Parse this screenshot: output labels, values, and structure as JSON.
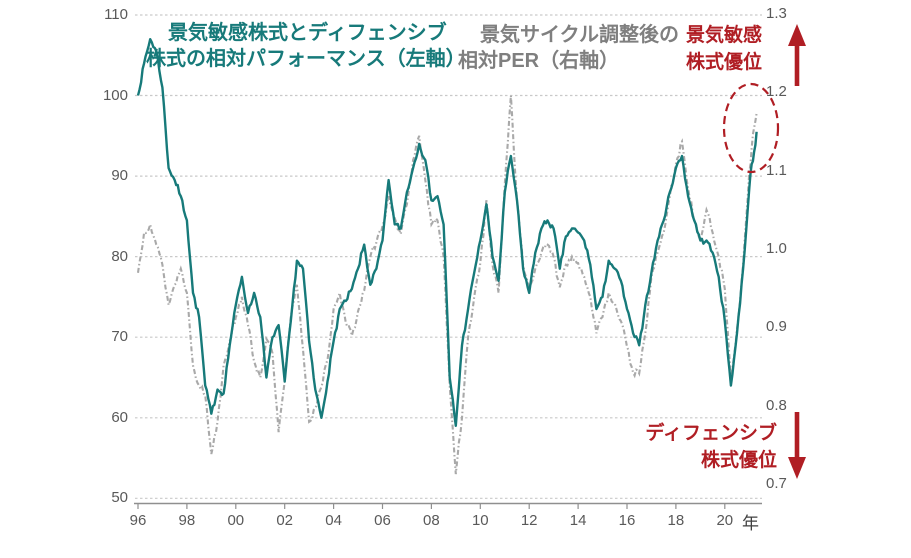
{
  "labels": {
    "series_left_title_line1": "景気敏感株式とディフェンシブ",
    "series_left_title_line2": "株式の相対パフォーマンス（左軸）",
    "series_right_title_line1": "景気サイクル調整後の",
    "series_right_title_line2": "相対PER（右軸）",
    "annotation_top_line1": "景気敏感",
    "annotation_top_line2": "株式優位",
    "annotation_bottom_line1": "ディフェンシブ",
    "annotation_bottom_line2": "株式優位",
    "x_axis_unit": "年"
  },
  "colors": {
    "series_left": "#177a7a",
    "series_right": "#a9a9a9",
    "annotation_red": "#b01e24",
    "grid": "#c9c9c9",
    "axis_line": "#8f8f8f",
    "axis_text": "#595959"
  },
  "chart_data": {
    "type": "line",
    "x_label": "年",
    "x_ticks": [
      "96",
      "98",
      "00",
      "02",
      "04",
      "06",
      "08",
      "10",
      "12",
      "14",
      "16",
      "18",
      "20"
    ],
    "left_axis": {
      "ticks": [
        110,
        100,
        90,
        80,
        70,
        60,
        50
      ],
      "range": [
        50,
        110
      ]
    },
    "right_axis": {
      "ticks": [
        "1.3",
        "1.2",
        "1.1",
        "1.0",
        "0.9",
        "0.8",
        "0.7"
      ],
      "range": [
        0.7,
        1.3
      ]
    },
    "grid": true,
    "x": [
      1996,
      1996.25,
      1996.5,
      1996.75,
      1997,
      1997.25,
      1997.5,
      1997.75,
      1998,
      1998.25,
      1998.5,
      1998.75,
      1999,
      1999.25,
      1999.5,
      1999.75,
      2000,
      2000.25,
      2000.5,
      2000.75,
      2001,
      2001.25,
      2001.5,
      2001.75,
      2002,
      2002.25,
      2002.5,
      2002.75,
      2003,
      2003.25,
      2003.5,
      2003.75,
      2004,
      2004.25,
      2004.5,
      2004.75,
      2005,
      2005.25,
      2005.5,
      2005.75,
      2006,
      2006.25,
      2006.5,
      2006.75,
      2007,
      2007.25,
      2007.5,
      2007.75,
      2008,
      2008.25,
      2008.5,
      2008.75,
      2009,
      2009.25,
      2009.5,
      2009.75,
      2010,
      2010.25,
      2010.5,
      2010.75,
      2011,
      2011.25,
      2011.5,
      2011.75,
      2012,
      2012.25,
      2012.5,
      2012.75,
      2013,
      2013.25,
      2013.5,
      2013.75,
      2014,
      2014.25,
      2014.5,
      2014.75,
      2015,
      2015.25,
      2015.5,
      2015.75,
      2016,
      2016.25,
      2016.5,
      2016.75,
      2017,
      2017.25,
      2017.5,
      2017.75,
      2018,
      2018.25,
      2018.5,
      2018.75,
      2019,
      2019.25,
      2019.5,
      2019.75,
      2020,
      2020.25,
      2020.5,
      2020.75,
      2021,
      2021.1,
      2021.2,
      2021.3
    ],
    "series": [
      {
        "name": "景気敏感株式とディフェンシブ株式の相対パフォーマンス（左軸）",
        "axis": "left",
        "color": "#177a7a",
        "line_style": "solid",
        "values": [
          100,
          104,
          107,
          105.5,
          101,
          91,
          89.5,
          87.5,
          84.5,
          75.5,
          72.5,
          64,
          60.5,
          63.5,
          63,
          69,
          74,
          77.5,
          73,
          75.5,
          72.5,
          65,
          70,
          71.5,
          64.5,
          72,
          79.5,
          78.5,
          69.5,
          63.5,
          60,
          64.5,
          69.5,
          73.5,
          74.5,
          76,
          78.5,
          81.5,
          76.5,
          78.5,
          82,
          89.5,
          84,
          83.5,
          88,
          91,
          94,
          92,
          87,
          87.5,
          84,
          65,
          59,
          69,
          73.5,
          78,
          82,
          86.5,
          80,
          77,
          88,
          92.5,
          87,
          78.5,
          75.5,
          80.5,
          83.5,
          84.5,
          83.5,
          78.5,
          82.5,
          83.5,
          83,
          82,
          79,
          73.5,
          75,
          79.5,
          78.5,
          77,
          73.5,
          70.5,
          69,
          74,
          78,
          82,
          84.5,
          88,
          91,
          92.5,
          87.5,
          84.5,
          82,
          82,
          80.5,
          77.5,
          72,
          64,
          70.5,
          78.5,
          88.5,
          91.5,
          93,
          95.5
        ]
      },
      {
        "name": "景気サイクル調整後の相対PER（右軸）",
        "axis": "right",
        "color": "#a9a9a9",
        "line_style": "dashed",
        "values": [
          0.98,
          1.03,
          1.04,
          1.015,
          0.99,
          0.94,
          0.965,
          0.985,
          0.955,
          0.865,
          0.84,
          0.828,
          0.755,
          0.795,
          0.865,
          0.895,
          0.925,
          0.95,
          0.915,
          0.87,
          0.85,
          0.898,
          0.88,
          0.782,
          0.845,
          0.925,
          0.965,
          0.885,
          0.795,
          0.812,
          0.838,
          0.872,
          0.935,
          0.955,
          0.918,
          0.902,
          0.932,
          0.958,
          1.0,
          1.018,
          1.038,
          1.075,
          1.048,
          1.028,
          1.065,
          1.12,
          1.15,
          1.095,
          1.04,
          1.045,
          1.0,
          0.84,
          0.73,
          0.8,
          0.9,
          0.95,
          0.992,
          1.07,
          0.99,
          0.955,
          1.09,
          1.2,
          1.07,
          0.99,
          0.96,
          0.985,
          1.005,
          1.015,
          1.0,
          0.962,
          0.99,
          1.0,
          0.992,
          0.975,
          0.95,
          0.905,
          0.925,
          0.955,
          0.942,
          0.92,
          0.888,
          0.856,
          0.855,
          0.905,
          0.975,
          1.005,
          1.03,
          1.075,
          1.115,
          1.143,
          1.085,
          1.045,
          1.02,
          1.058,
          1.03,
          1.0,
          0.96,
          0.845,
          0.91,
          0.99,
          1.105,
          1.135,
          1.16,
          1.178
        ]
      }
    ],
    "annotations": [
      {
        "text": "景気敏感株式優位",
        "color": "#b01e24",
        "position": "top-right",
        "arrow": "up"
      },
      {
        "text": "ディフェンシブ株式優位",
        "color": "#b01e24",
        "position": "bottom-right",
        "arrow": "down"
      },
      {
        "type": "ellipse-highlight",
        "color": "#b01e24",
        "x_center": 2021.1,
        "marks": "latest data points"
      }
    ]
  }
}
